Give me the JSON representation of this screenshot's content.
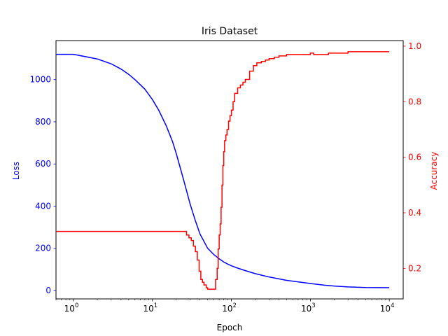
{
  "chart_data": {
    "type": "line",
    "title": "Iris Dataset",
    "xlabel": "Epoch",
    "xscale": "log",
    "xlim": [
      0.6,
      15000
    ],
    "x_ticks": [
      {
        "value": 1,
        "base": "10",
        "exp": "0"
      },
      {
        "value": 10,
        "base": "10",
        "exp": "1"
      },
      {
        "value": 100,
        "base": "10",
        "exp": "2"
      },
      {
        "value": 1000,
        "base": "10",
        "exp": "3"
      },
      {
        "value": 10000,
        "base": "10",
        "exp": "4"
      }
    ],
    "y_left": {
      "label": "Loss",
      "color": "#0000ff",
      "lim": [
        -40,
        1185
      ],
      "ticks": [
        {
          "value": 0,
          "label": "0"
        },
        {
          "value": 200,
          "label": "200"
        },
        {
          "value": 400,
          "label": "400"
        },
        {
          "value": 600,
          "label": "600"
        },
        {
          "value": 800,
          "label": "800"
        },
        {
          "value": 1000,
          "label": "1000"
        }
      ]
    },
    "y_right": {
      "label": "Accuracy",
      "color": "#ff0000",
      "lim": [
        0.09,
        1.02
      ],
      "ticks": [
        {
          "value": 0.2,
          "label": "0.2"
        },
        {
          "value": 0.4,
          "label": "0.4"
        },
        {
          "value": 0.6,
          "label": "0.6"
        },
        {
          "value": 0.8,
          "label": "0.8"
        },
        {
          "value": 1.0,
          "label": "1.0"
        }
      ]
    },
    "series": [
      {
        "name": "Loss",
        "axis": "left",
        "color": "#0000ff",
        "step": false,
        "x": [
          0.6,
          1,
          2,
          3,
          4,
          5,
          6,
          8,
          10,
          12,
          15,
          18,
          20,
          25,
          30,
          35,
          40,
          50,
          60,
          70,
          80,
          90,
          100,
          120,
          150,
          200,
          300,
          500,
          1000,
          1500,
          2000,
          3000,
          5000,
          10000
        ],
        "y": [
          1120,
          1120,
          1098,
          1075,
          1050,
          1025,
          1000,
          955,
          905,
          855,
          780,
          705,
          650,
          520,
          410,
          330,
          268,
          200,
          170,
          150,
          135,
          125,
          117,
          106,
          94,
          80,
          64,
          48,
          33,
          25,
          21,
          17,
          14,
          13
        ]
      },
      {
        "name": "Accuracy",
        "axis": "right",
        "color": "#ff0000",
        "step": true,
        "x": [
          0.6,
          25,
          27,
          29,
          31,
          33,
          35,
          37,
          39,
          41,
          43,
          45,
          48,
          50,
          52,
          55,
          60,
          63,
          66,
          68,
          70,
          72,
          74,
          76,
          78,
          80,
          82,
          85,
          88,
          92,
          96,
          100,
          105,
          110,
          120,
          130,
          140,
          150,
          170,
          190,
          210,
          240,
          270,
          300,
          350,
          400,
          500,
          700,
          900,
          1000,
          1100,
          1700,
          3000,
          10000
        ],
        "y": [
          0.333,
          0.333,
          0.32,
          0.31,
          0.3,
          0.28,
          0.26,
          0.23,
          0.19,
          0.16,
          0.15,
          0.14,
          0.13,
          0.125,
          0.125,
          0.125,
          0.125,
          0.16,
          0.2,
          0.27,
          0.32,
          0.36,
          0.42,
          0.5,
          0.57,
          0.62,
          0.66,
          0.68,
          0.7,
          0.73,
          0.75,
          0.77,
          0.8,
          0.83,
          0.85,
          0.86,
          0.87,
          0.88,
          0.91,
          0.93,
          0.94,
          0.945,
          0.95,
          0.955,
          0.96,
          0.965,
          0.97,
          0.97,
          0.97,
          0.975,
          0.97,
          0.975,
          0.98,
          0.98
        ]
      }
    ]
  }
}
